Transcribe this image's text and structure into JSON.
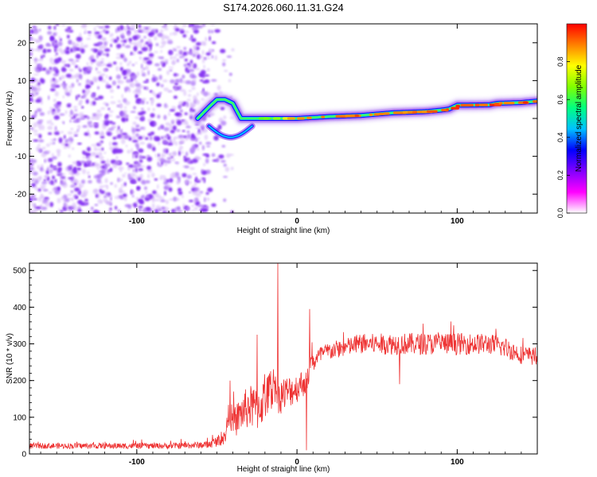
{
  "title": "S174.2026.060.11.31.G24",
  "chart_data": [
    {
      "type": "heatmap",
      "xlabel": "Height of straight line (km)",
      "ylabel": "Frequency (Hz)",
      "xlim": [
        -167,
        150
      ],
      "ylim": [
        -25,
        25
      ],
      "xticks": [
        -100,
        0,
        100
      ],
      "yticks": [
        -20,
        -10,
        0,
        10,
        20
      ],
      "colorbar": {
        "label": "Normalized spectral amplitude",
        "range": [
          0,
          1
        ],
        "ticks": [
          0.0,
          0.2,
          0.4,
          0.6,
          0.8
        ],
        "tick_labels": [
          "0.0",
          "0.2",
          "0.4",
          "0.6",
          "0.8"
        ],
        "colormap": [
          "#ffffff",
          "#ff00ff",
          "#8000ff",
          "#0000ff",
          "#00c0ff",
          "#00ff80",
          "#80ff00",
          "#ffff00",
          "#ff8000",
          "#ff0000"
        ]
      },
      "noise_region_x": [
        -167,
        -55
      ],
      "ridge": {
        "x": [
          -62,
          -55,
          -50,
          -45,
          -40,
          -35,
          -30,
          -20,
          -10,
          0,
          20,
          40,
          60,
          80,
          90,
          95,
          100,
          120,
          125,
          140,
          150
        ],
        "freq": [
          0,
          3,
          5,
          5,
          4,
          0,
          0,
          0,
          0,
          0,
          0.5,
          0.8,
          1.5,
          1.8,
          2.2,
          2.5,
          3.5,
          3.6,
          4,
          4.2,
          4.6
        ],
        "amplitude": [
          0.3,
          0.35,
          0.45,
          0.55,
          0.6,
          0.6,
          0.55,
          0.65,
          0.8,
          0.85,
          0.9,
          0.9,
          0.88,
          0.9,
          0.92,
          0.95,
          0.93,
          0.95,
          0.9,
          0.95,
          0.9
        ]
      }
    },
    {
      "type": "line",
      "xlabel": "Height of straight line (km)",
      "ylabel": "SNR (10 * v/v)",
      "xlim": [
        -167,
        150
      ],
      "ylim": [
        0,
        520
      ],
      "xticks": [
        -100,
        0,
        100
      ],
      "yticks": [
        0,
        100,
        200,
        300,
        400,
        500
      ],
      "color": "#ee3333",
      "series": [
        {
          "name": "SNR",
          "x": [
            -167,
            -120,
            -80,
            -55,
            -50,
            -45,
            -42,
            -40,
            -35,
            -30,
            -25,
            -20,
            -15,
            -13,
            -12,
            -10,
            -5,
            0,
            5,
            6,
            8,
            10,
            15,
            20,
            25,
            30,
            40,
            50,
            60,
            80,
            100,
            120,
            130,
            140,
            150
          ],
          "base": [
            22,
            22,
            22,
            25,
            35,
            45,
            120,
            80,
            110,
            130,
            120,
            150,
            180,
            200,
            160,
            160,
            170,
            180,
            200,
            190,
            240,
            250,
            270,
            280,
            285,
            290,
            300,
            300,
            300,
            300,
            300,
            300,
            290,
            270,
            265
          ],
          "noise": [
            8,
            8,
            8,
            10,
            15,
            20,
            40,
            40,
            50,
            60,
            60,
            60,
            60,
            50,
            50,
            50,
            45,
            40,
            40,
            40,
            30,
            30,
            25,
            25,
            25,
            25,
            28,
            28,
            30,
            30,
            30,
            28,
            28,
            25,
            25
          ],
          "spikes": [
            {
              "x": -42,
              "y": 200
            },
            {
              "x": -25,
              "y": 325
            },
            {
              "x": -12,
              "y": 520
            },
            {
              "x": 6,
              "y": 10
            },
            {
              "x": 8,
              "y": 395
            },
            {
              "x": 64,
              "y": 190
            }
          ]
        }
      ]
    }
  ]
}
